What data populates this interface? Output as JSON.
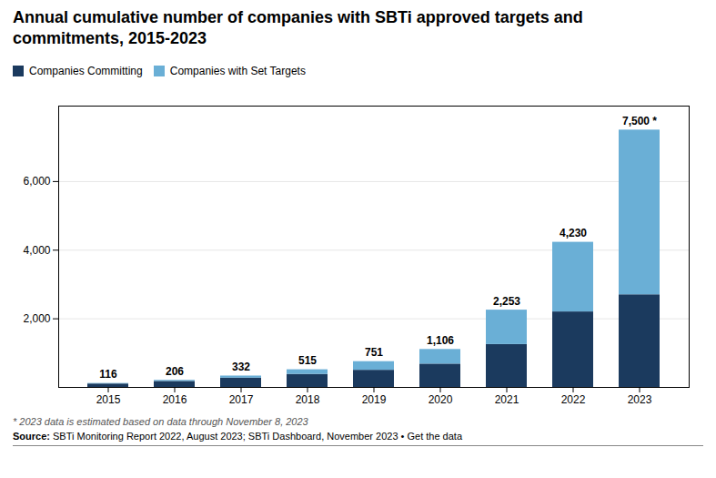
{
  "chart_data": {
    "type": "bar",
    "title": "Annual cumulative number of companies with SBTi approved targets and\ncommitments, 2015-2023",
    "categories": [
      "2015",
      "2016",
      "2017",
      "2018",
      "2019",
      "2020",
      "2021",
      "2022",
      "2023"
    ],
    "series": [
      {
        "name": "Companies Committing",
        "color": "#1b3a5e",
        "values": [
          100,
          175,
          270,
          380,
          500,
          680,
          1250,
          2200,
          2700
        ]
      },
      {
        "name": "Companies with Set Targets",
        "color": "#6aafd6",
        "values": [
          16,
          31,
          62,
          135,
          251,
          426,
          1003,
          2030,
          4800
        ]
      }
    ],
    "totals": [
      116,
      206,
      332,
      515,
      751,
      1106,
      2253,
      4230,
      7500
    ],
    "total_labels": [
      "116",
      "206",
      "332",
      "515",
      "751",
      "1,106",
      "2,253",
      "4,230",
      "7,500 *"
    ],
    "stacked": true,
    "ylim": [
      0,
      8200
    ],
    "yticks": [
      {
        "value": 2000,
        "label": "2,000"
      },
      {
        "value": 4000,
        "label": "4,000"
      },
      {
        "value": 6000,
        "label": "6,000"
      }
    ],
    "grid": true,
    "legend": "top-left",
    "footnote": "* 2023 data is estimated based on data through November 8, 2023",
    "source_label": "Source: ",
    "source_text": "SBTi Monitoring Report 2022, August 2023; SBTi Dashboard, November 2023 • Get the data"
  }
}
